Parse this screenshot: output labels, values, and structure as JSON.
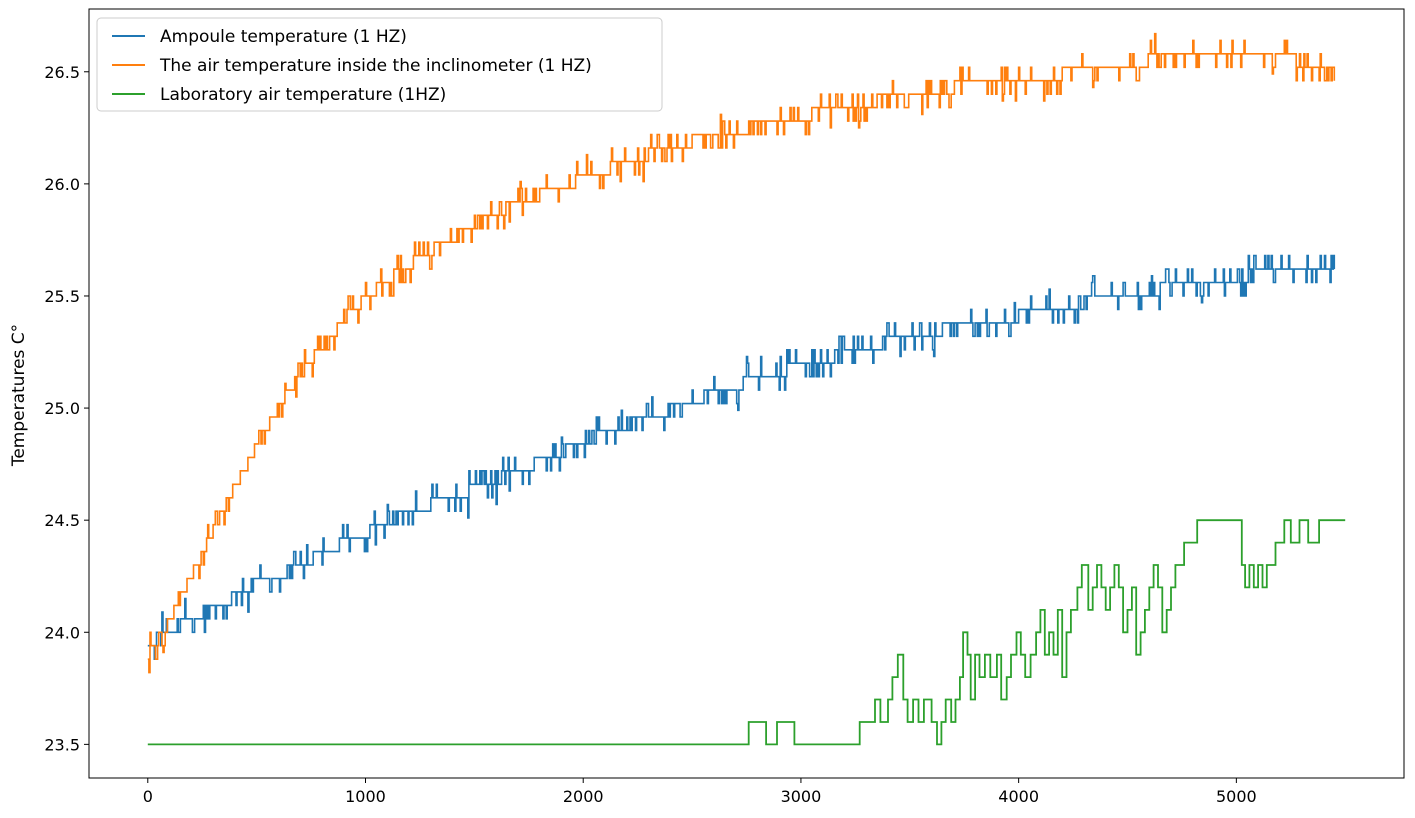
{
  "chart_data": {
    "type": "line",
    "title": "",
    "xlabel": "",
    "ylabel": "Temperatures C°",
    "xlim": [
      -270,
      5770
    ],
    "ylim": [
      23.35,
      26.78
    ],
    "xticks": [
      0,
      1000,
      2000,
      3000,
      4000,
      5000
    ],
    "xtick_labels": [
      "0",
      "1000",
      "2000",
      "3000",
      "4000",
      "5000"
    ],
    "yticks": [
      23.5,
      24.0,
      24.5,
      25.0,
      25.5,
      26.0,
      26.5
    ],
    "ytick_labels": [
      "23.5",
      "24.0",
      "24.5",
      "25.0",
      "25.5",
      "26.0",
      "26.5"
    ],
    "grid": false,
    "legend_position": "upper-left",
    "series": [
      {
        "name": "Ampoule temperature (1 HZ)",
        "color": "#1f77b4",
        "noise": 0.06,
        "x": [
          0,
          100,
          200,
          300,
          400,
          500,
          600,
          700,
          800,
          900,
          1000,
          1100,
          1200,
          1300,
          1400,
          1500,
          1600,
          1700,
          1800,
          1900,
          2000,
          2100,
          2200,
          2300,
          2400,
          2500,
          2600,
          2700,
          2800,
          2900,
          3000,
          3100,
          3200,
          3300,
          3400,
          3500,
          3600,
          3700,
          3800,
          3900,
          4000,
          4100,
          4200,
          4300,
          4400,
          4500,
          4600,
          4700,
          4800,
          4900,
          5000,
          5100,
          5200,
          5300,
          5450
        ],
        "y": [
          23.95,
          24.0,
          24.06,
          24.1,
          24.16,
          24.22,
          24.25,
          24.3,
          24.35,
          24.4,
          24.44,
          24.49,
          24.53,
          24.57,
          24.6,
          24.64,
          24.68,
          24.72,
          24.76,
          24.8,
          24.85,
          24.9,
          24.93,
          24.96,
          24.99,
          25.03,
          25.07,
          25.1,
          25.13,
          25.16,
          25.19,
          25.22,
          25.24,
          25.27,
          25.3,
          25.32,
          25.34,
          25.36,
          25.38,
          25.4,
          25.41,
          25.43,
          25.45,
          25.47,
          25.48,
          25.5,
          25.52,
          25.54,
          25.55,
          25.57,
          25.58,
          25.6,
          25.61,
          25.62,
          25.63
        ]
      },
      {
        "name": "The air temperature inside the inclinometer (1 HZ)",
        "color": "#ff7f0e",
        "noise": 0.07,
        "x": [
          0,
          100,
          200,
          300,
          400,
          500,
          600,
          700,
          800,
          900,
          1000,
          1100,
          1200,
          1300,
          1400,
          1500,
          1600,
          1700,
          1800,
          1900,
          2000,
          2100,
          2200,
          2300,
          2400,
          2500,
          2600,
          2700,
          2800,
          2900,
          3000,
          3100,
          3200,
          3300,
          3400,
          3500,
          3600,
          3700,
          3800,
          3900,
          4000,
          4100,
          4200,
          4300,
          4400,
          4500,
          4600,
          4700,
          4800,
          4900,
          5000,
          5100,
          5200,
          5300,
          5450
        ],
        "y": [
          23.9,
          24.05,
          24.25,
          24.45,
          24.65,
          24.83,
          25.0,
          25.15,
          25.28,
          25.39,
          25.49,
          25.57,
          25.64,
          25.7,
          25.76,
          25.82,
          25.87,
          25.91,
          25.95,
          25.99,
          26.02,
          26.06,
          26.1,
          26.13,
          26.16,
          26.19,
          26.21,
          26.23,
          26.26,
          26.28,
          26.3,
          26.32,
          26.34,
          26.36,
          26.38,
          26.4,
          26.41,
          26.43,
          26.44,
          26.45,
          26.47,
          26.48,
          26.49,
          26.5,
          26.51,
          26.53,
          26.55,
          26.58,
          26.6,
          26.6,
          26.6,
          26.6,
          26.58,
          26.54,
          26.53
        ]
      },
      {
        "name": "Laboratory air temperature (1HZ)",
        "color": "#2ca02c",
        "noise": 0,
        "x": [
          0,
          2760,
          2840,
          2890,
          2970,
          3270,
          3340,
          3365,
          3400,
          3420,
          3445,
          3470,
          3490,
          3515,
          3540,
          3565,
          3600,
          3625,
          3645,
          3665,
          3690,
          3710,
          3730,
          3745,
          3765,
          3780,
          3800,
          3820,
          3845,
          3870,
          3900,
          3920,
          3945,
          3965,
          3990,
          4010,
          4030,
          4055,
          4080,
          4100,
          4120,
          4140,
          4160,
          4180,
          4200,
          4220,
          4240,
          4270,
          4290,
          4320,
          4340,
          4360,
          4380,
          4400,
          4420,
          4440,
          4460,
          4480,
          4500,
          4520,
          4540,
          4560,
          4580,
          4600,
          4620,
          4640,
          4660,
          4680,
          4700,
          4720,
          4760,
          4820,
          5010,
          5025,
          5040,
          5060,
          5080,
          5100,
          5120,
          5140,
          5180,
          5220,
          5250,
          5290,
          5330,
          5380,
          5450,
          5500
        ],
        "y": [
          23.5,
          23.6,
          23.5,
          23.6,
          23.5,
          23.6,
          23.7,
          23.6,
          23.7,
          23.8,
          23.9,
          23.7,
          23.6,
          23.7,
          23.6,
          23.7,
          23.6,
          23.5,
          23.6,
          23.7,
          23.6,
          23.7,
          23.8,
          24.0,
          23.9,
          23.7,
          23.9,
          23.8,
          23.9,
          23.8,
          23.9,
          23.7,
          23.8,
          23.9,
          24.0,
          23.9,
          23.8,
          23.9,
          24.0,
          24.1,
          23.9,
          24.0,
          23.9,
          24.1,
          23.8,
          24.0,
          24.1,
          24.2,
          24.3,
          24.1,
          24.2,
          24.3,
          24.2,
          24.1,
          24.2,
          24.3,
          24.2,
          24.0,
          24.1,
          24.2,
          23.9,
          24.0,
          24.1,
          24.2,
          24.3,
          24.2,
          24.0,
          24.1,
          24.2,
          24.3,
          24.4,
          24.5,
          24.5,
          24.3,
          24.2,
          24.3,
          24.2,
          24.3,
          24.2,
          24.3,
          24.4,
          24.5,
          24.4,
          24.5,
          24.4,
          24.5,
          24.5,
          24.5
        ]
      }
    ]
  }
}
